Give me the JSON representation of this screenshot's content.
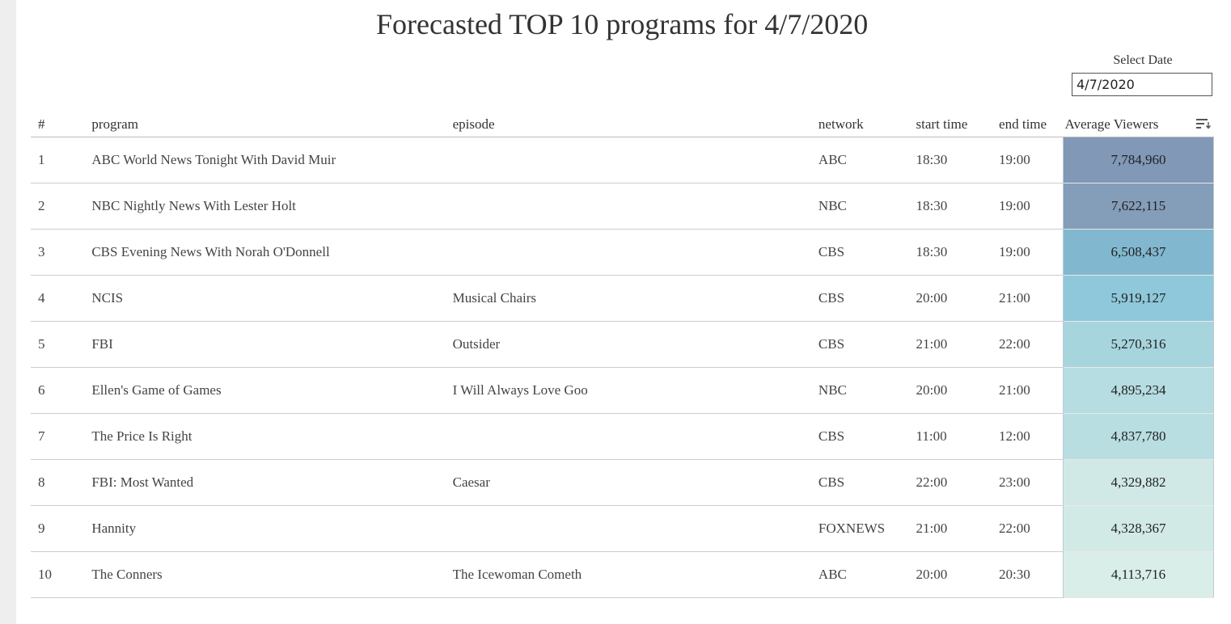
{
  "title": "Forecasted TOP 10 programs for 4/7/2020",
  "date_picker": {
    "label": "Select Date",
    "value": "4/7/2020"
  },
  "table": {
    "headers": {
      "rank": "#",
      "program": "program",
      "episode": "episode",
      "network": "network",
      "start_time": "start time",
      "end_time": "end time",
      "average_viewers": "Average Viewers"
    },
    "sort_icon": "sort-descending-icon",
    "rows": [
      {
        "rank": "1",
        "program": "ABC World News Tonight With David Muir",
        "episode": "",
        "network": "ABC",
        "start_time": "18:30",
        "end_time": "19:00",
        "average_viewers": "7,784,960",
        "heat_color": "#8198b7"
      },
      {
        "rank": "2",
        "program": "NBC Nightly News With Lester Holt",
        "episode": "",
        "network": "NBC",
        "start_time": "18:30",
        "end_time": "19:00",
        "average_viewers": "7,622,115",
        "heat_color": "#849db9"
      },
      {
        "rank": "3",
        "program": "CBS Evening News With Norah O'Donnell",
        "episode": "",
        "network": "CBS",
        "start_time": "18:30",
        "end_time": "19:00",
        "average_viewers": "6,508,437",
        "heat_color": "#82b8cf"
      },
      {
        "rank": "4",
        "program": "NCIS",
        "episode": "Musical Chairs",
        "network": "CBS",
        "start_time": "20:00",
        "end_time": "21:00",
        "average_viewers": "5,919,127",
        "heat_color": "#8ec8da"
      },
      {
        "rank": "5",
        "program": "FBI",
        "episode": "Outsider",
        "network": "CBS",
        "start_time": "21:00",
        "end_time": "22:00",
        "average_viewers": "5,270,316",
        "heat_color": "#a7d5de"
      },
      {
        "rank": "6",
        "program": "Ellen's Game of Games",
        "episode": "I Will Always Love Goo",
        "network": "NBC",
        "start_time": "20:00",
        "end_time": "21:00",
        "average_viewers": "4,895,234",
        "heat_color": "#b6dde1"
      },
      {
        "rank": "7",
        "program": "The Price Is Right",
        "episode": "",
        "network": "CBS",
        "start_time": "11:00",
        "end_time": "12:00",
        "average_viewers": "4,837,780",
        "heat_color": "#b8dee2"
      },
      {
        "rank": "8",
        "program": "FBI: Most Wanted",
        "episode": "Caesar",
        "network": "CBS",
        "start_time": "22:00",
        "end_time": "23:00",
        "average_viewers": "4,329,882",
        "heat_color": "#d1e9e6"
      },
      {
        "rank": "9",
        "program": "Hannity",
        "episode": "",
        "network": "FOXNEWS",
        "start_time": "21:00",
        "end_time": "22:00",
        "average_viewers": "4,328,367",
        "heat_color": "#d2eae6"
      },
      {
        "rank": "10",
        "program": "The Conners",
        "episode": "The Icewoman Cometh",
        "network": "ABC",
        "start_time": "20:00",
        "end_time": "20:30",
        "average_viewers": "4,113,716",
        "heat_color": "#daeee9"
      }
    ]
  }
}
